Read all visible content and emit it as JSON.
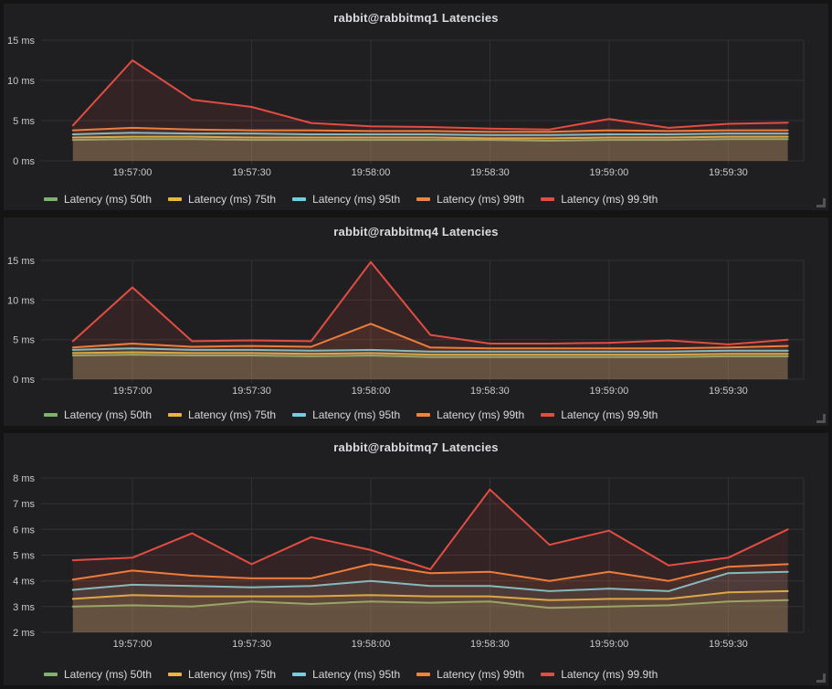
{
  "colors": {
    "page_bg": "#141415",
    "panel_bg": "#1f1f22",
    "grid": "#323236",
    "tick_text": "#c9cacc",
    "title_text": "#dcdde0",
    "legend_text": "#d8d9da",
    "series_palette": {
      "50th": "#7EB26D",
      "75th": "#EAB839",
      "95th": "#6ED0E0",
      "99th": "#EF843C",
      "99.9th": "#E24D42"
    },
    "fill_opacity": 0.11
  },
  "chart_data": [
    {
      "type": "area",
      "title": "rabbit@rabbitmq1 Latencies",
      "xlabel": "",
      "ylabel": "",
      "grid": true,
      "legend_position": "bottom-left",
      "x_range": [
        "19:56:37",
        "19:59:49"
      ],
      "x_ticks": [
        "19:57:00",
        "19:57:30",
        "19:58:00",
        "19:58:30",
        "19:59:00",
        "19:59:30"
      ],
      "x": [
        "19:56:45",
        "19:57:00",
        "19:57:15",
        "19:57:30",
        "19:57:45",
        "19:58:00",
        "19:58:15",
        "19:58:30",
        "19:58:45",
        "19:59:00",
        "19:59:15",
        "19:59:30",
        "19:59:45"
      ],
      "ylim": [
        0,
        15
      ],
      "y_ticks": [
        {
          "value": 0,
          "label": "0 ms"
        },
        {
          "value": 5,
          "label": "5 ms"
        },
        {
          "value": 10,
          "label": "10 ms"
        },
        {
          "value": 15,
          "label": "15 ms"
        }
      ],
      "series": [
        {
          "name": "Latency (ms) 50th",
          "color": "#7EB26D",
          "values": [
            2.6,
            2.7,
            2.7,
            2.6,
            2.6,
            2.6,
            2.6,
            2.6,
            2.5,
            2.6,
            2.6,
            2.7,
            2.7
          ]
        },
        {
          "name": "Latency (ms) 75th",
          "color": "#EAB839",
          "values": [
            2.9,
            3.0,
            3.0,
            2.9,
            2.9,
            2.9,
            2.9,
            2.8,
            2.8,
            2.9,
            2.9,
            3.0,
            3.0
          ]
        },
        {
          "name": "Latency (ms) 95th",
          "color": "#6ED0E0",
          "values": [
            3.3,
            3.5,
            3.4,
            3.4,
            3.3,
            3.3,
            3.3,
            3.2,
            3.2,
            3.3,
            3.3,
            3.4,
            3.4
          ]
        },
        {
          "name": "Latency (ms) 99th",
          "color": "#EF843C",
          "values": [
            3.8,
            4.1,
            3.9,
            3.8,
            3.8,
            3.7,
            3.7,
            3.6,
            3.6,
            3.8,
            3.7,
            3.8,
            3.8
          ]
        },
        {
          "name": "Latency (ms) 99.9th",
          "color": "#E24D42",
          "values": [
            4.4,
            12.5,
            7.6,
            6.7,
            4.7,
            4.3,
            4.2,
            4.0,
            3.9,
            5.2,
            4.1,
            4.6,
            4.75
          ]
        }
      ]
    },
    {
      "type": "area",
      "title": "rabbit@rabbitmq4 Latencies",
      "xlabel": "",
      "ylabel": "",
      "grid": true,
      "legend_position": "bottom-left",
      "x_range": [
        "19:56:37",
        "19:59:49"
      ],
      "x_ticks": [
        "19:57:00",
        "19:57:30",
        "19:58:00",
        "19:58:30",
        "19:59:00",
        "19:59:30"
      ],
      "x": [
        "19:56:45",
        "19:57:00",
        "19:57:15",
        "19:57:30",
        "19:57:45",
        "19:58:00",
        "19:58:15",
        "19:58:30",
        "19:58:45",
        "19:59:00",
        "19:59:15",
        "19:59:30",
        "19:59:45"
      ],
      "ylim": [
        0,
        15
      ],
      "y_ticks": [
        {
          "value": 0,
          "label": "0 ms"
        },
        {
          "value": 5,
          "label": "5 ms"
        },
        {
          "value": 10,
          "label": "10 ms"
        },
        {
          "value": 15,
          "label": "15 ms"
        }
      ],
      "series": [
        {
          "name": "Latency (ms) 50th",
          "color": "#7EB26D",
          "values": [
            3.0,
            3.1,
            3.0,
            3.0,
            2.9,
            3.0,
            2.8,
            2.8,
            2.8,
            2.8,
            2.8,
            2.9,
            2.9
          ]
        },
        {
          "name": "Latency (ms) 75th",
          "color": "#EAB839",
          "values": [
            3.3,
            3.4,
            3.3,
            3.3,
            3.2,
            3.3,
            3.1,
            3.1,
            3.1,
            3.1,
            3.1,
            3.2,
            3.2
          ]
        },
        {
          "name": "Latency (ms) 95th",
          "color": "#6ED0E0",
          "values": [
            3.7,
            3.9,
            3.7,
            3.7,
            3.6,
            3.7,
            3.5,
            3.5,
            3.5,
            3.5,
            3.5,
            3.6,
            3.6
          ]
        },
        {
          "name": "Latency (ms) 99th",
          "color": "#EF843C",
          "values": [
            4.0,
            4.5,
            4.1,
            4.2,
            4.1,
            7.0,
            4.0,
            3.9,
            3.9,
            3.9,
            3.9,
            4.0,
            4.2
          ]
        },
        {
          "name": "Latency (ms) 99.9th",
          "color": "#E24D42",
          "values": [
            4.8,
            11.6,
            4.8,
            4.9,
            4.8,
            14.8,
            5.6,
            4.5,
            4.5,
            4.6,
            4.9,
            4.4,
            5.0
          ]
        }
      ]
    },
    {
      "type": "area",
      "title": "rabbit@rabbitmq7 Latencies",
      "xlabel": "",
      "ylabel": "",
      "grid": true,
      "legend_position": "bottom-left",
      "x_range": [
        "19:56:37",
        "19:59:49"
      ],
      "x_ticks": [
        "19:57:00",
        "19:57:30",
        "19:58:00",
        "19:58:30",
        "19:59:00",
        "19:59:30"
      ],
      "x": [
        "19:56:45",
        "19:57:00",
        "19:57:15",
        "19:57:30",
        "19:57:45",
        "19:58:00",
        "19:58:15",
        "19:58:30",
        "19:58:45",
        "19:59:00",
        "19:59:15",
        "19:59:30",
        "19:59:45"
      ],
      "ylim": [
        2,
        8
      ],
      "y_ticks": [
        {
          "value": 2,
          "label": "2 ms"
        },
        {
          "value": 3,
          "label": "3 ms"
        },
        {
          "value": 4,
          "label": "4 ms"
        },
        {
          "value": 5,
          "label": "5 ms"
        },
        {
          "value": 6,
          "label": "6 ms"
        },
        {
          "value": 7,
          "label": "7 ms"
        },
        {
          "value": 8,
          "label": "8 ms"
        }
      ],
      "series": [
        {
          "name": "Latency (ms) 50th",
          "color": "#7EB26D",
          "values": [
            3.0,
            3.05,
            3.0,
            3.2,
            3.1,
            3.2,
            3.15,
            3.2,
            2.95,
            3.0,
            3.05,
            3.2,
            3.25
          ]
        },
        {
          "name": "Latency (ms) 75th",
          "color": "#EAB839",
          "values": [
            3.3,
            3.45,
            3.4,
            3.4,
            3.4,
            3.45,
            3.4,
            3.4,
            3.25,
            3.3,
            3.3,
            3.55,
            3.6
          ]
        },
        {
          "name": "Latency (ms) 95th",
          "color": "#6ED0E0",
          "values": [
            3.65,
            3.85,
            3.8,
            3.75,
            3.8,
            4.0,
            3.8,
            3.8,
            3.6,
            3.7,
            3.6,
            4.3,
            4.35
          ]
        },
        {
          "name": "Latency (ms) 99th",
          "color": "#EF843C",
          "values": [
            4.05,
            4.4,
            4.2,
            4.1,
            4.1,
            4.65,
            4.3,
            4.35,
            4.0,
            4.35,
            4.0,
            4.55,
            4.65
          ]
        },
        {
          "name": "Latency (ms) 99.9th",
          "color": "#E24D42",
          "values": [
            4.8,
            4.9,
            5.85,
            4.65,
            5.7,
            5.2,
            4.45,
            7.55,
            5.4,
            5.95,
            4.6,
            4.9,
            6.0
          ]
        }
      ]
    }
  ]
}
